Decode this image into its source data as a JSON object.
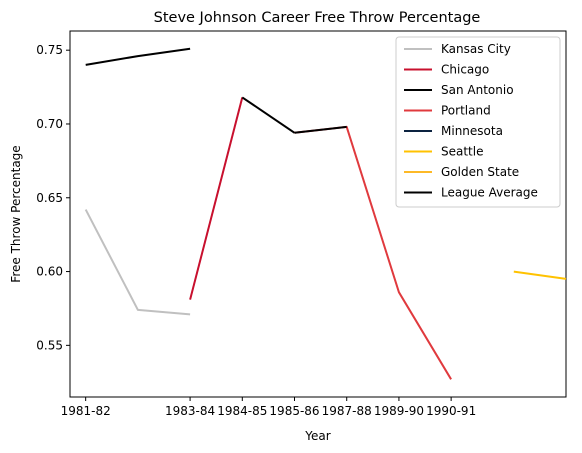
{
  "chart_data": {
    "type": "line",
    "title": "Steve Johnson  Career Free Throw Percentage",
    "xlabel": "Year",
    "ylabel": "Free Throw Percentage",
    "xlim": [
      1981.5,
      1991.0
    ],
    "ylim": [
      0.515,
      0.763
    ],
    "xticks": [
      {
        "label": "1981-82",
        "x": 1981.8
      },
      {
        "label": "1983-84",
        "x": 1983.8
      },
      {
        "label": "1984-85",
        "x": 1984.8
      },
      {
        "label": "1985-86",
        "x": 1985.8
      },
      {
        "label": "1987-88",
        "x": 1986.8
      },
      {
        "label": "1989-90",
        "x": 1987.8
      },
      {
        "label": "1990-91",
        "x": 1988.8
      }
    ],
    "yticks": [
      0.55,
      0.6,
      0.65,
      0.7,
      0.75
    ],
    "ytick_labels": [
      "0.55",
      "0.60",
      "0.65",
      "0.70",
      "0.75"
    ],
    "legend_position": "top-right",
    "grid": false,
    "series": [
      {
        "name": "Kansas City",
        "color": "#c0c0c0",
        "points": [
          [
            1981.8,
            0.642
          ],
          [
            1982.8,
            0.574
          ],
          [
            1983.8,
            0.571
          ]
        ]
      },
      {
        "name": "Chicago",
        "color": "#c8102e",
        "points": [
          [
            1983.8,
            0.581
          ],
          [
            1984.8,
            0.718
          ]
        ]
      },
      {
        "name": "San Antonio",
        "color": "#000000",
        "points": [
          [
            1984.8,
            0.718
          ],
          [
            1985.8,
            0.694
          ]
        ]
      },
      {
        "name": "Portland",
        "color": "#e03a3e",
        "points": [
          [
            1985.8,
            0.694
          ],
          [
            1986.8,
            0.698
          ],
          [
            1987.8,
            0.586
          ],
          [
            1988.8,
            0.527
          ]
        ]
      },
      {
        "name": "Minnesota",
        "color": "#0c2340",
        "points": []
      },
      {
        "name": "Seattle",
        "color": "#ffc200",
        "points": [
          [
            1990.0,
            0.6
          ],
          [
            1991.0,
            0.595
          ]
        ]
      },
      {
        "name": "Golden State",
        "color": "#fdb927",
        "points": []
      },
      {
        "name": "League Average",
        "color": "#000000",
        "points": [
          [
            1981.8,
            0.74
          ],
          [
            1982.8,
            0.746
          ],
          [
            1983.8,
            0.751
          ],
          [
            1985.8,
            0.694
          ],
          [
            1986.8,
            0.698
          ]
        ]
      }
    ]
  }
}
